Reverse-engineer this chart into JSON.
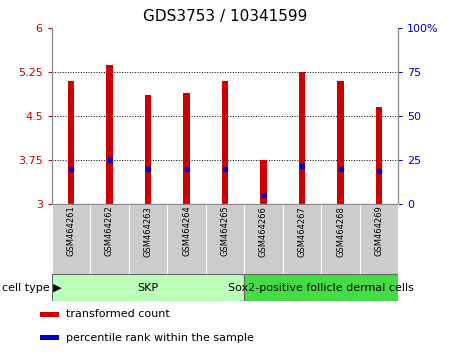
{
  "title": "GDS3753 / 10341599",
  "samples": [
    "GSM464261",
    "GSM464262",
    "GSM464263",
    "GSM464264",
    "GSM464265",
    "GSM464266",
    "GSM464267",
    "GSM464268",
    "GSM464269"
  ],
  "bar_values": [
    5.1,
    5.38,
    4.85,
    4.9,
    5.1,
    3.75,
    5.25,
    5.1,
    4.65
  ],
  "percentile_values": [
    3.6,
    3.75,
    3.6,
    3.6,
    3.6,
    3.15,
    3.65,
    3.6,
    3.55
  ],
  "bar_bottom": 3.0,
  "ylim_left": [
    3.0,
    6.0
  ],
  "ylim_right": [
    0,
    100
  ],
  "yticks_left": [
    3.0,
    3.75,
    4.5,
    5.25,
    6.0
  ],
  "ytick_labels_left": [
    "3",
    "3.75",
    "4.5",
    "5.25",
    "6"
  ],
  "yticks_right": [
    0,
    25,
    50,
    75,
    100
  ],
  "ytick_labels_right": [
    "0",
    "25",
    "50",
    "75",
    "100%"
  ],
  "grid_yticks": [
    3.75,
    4.5,
    5.25
  ],
  "bar_color": "#cc0000",
  "percentile_color": "#0000cc",
  "bar_width": 0.18,
  "skp_count": 5,
  "sox2_count": 4,
  "cell_type_skp_label": "SKP",
  "cell_type_sox2_label": "Sox2-positive follicle dermal cells",
  "cell_type_skp_color": "#bbffbb",
  "cell_type_sox2_color": "#44dd44",
  "cell_type_label": "cell type",
  "legend_items": [
    {
      "color": "#cc0000",
      "label": "transformed count"
    },
    {
      "color": "#0000cc",
      "label": "percentile rank within the sample"
    }
  ],
  "title_fontsize": 11,
  "tick_fontsize": 8,
  "sample_fontsize": 6,
  "label_fontsize": 8,
  "legend_fontsize": 8,
  "bg_color": "#ffffff",
  "xticklabel_bg": "#cccccc",
  "xticklabel_sep_color": "#ffffff"
}
